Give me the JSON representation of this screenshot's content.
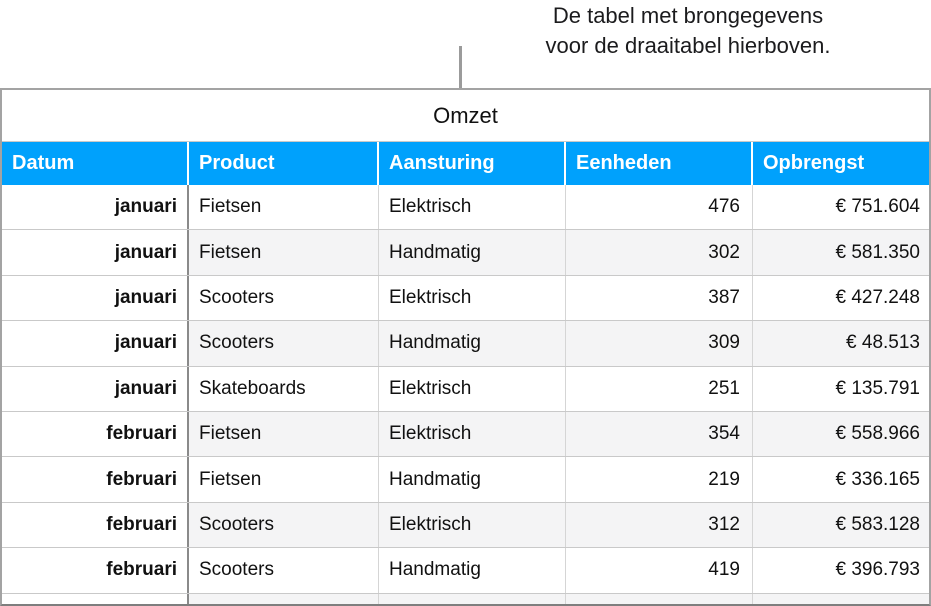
{
  "callout": {
    "line1": "De tabel met brongegevens",
    "line2": "voor de draaitabel hierboven."
  },
  "table": {
    "title": "Omzet",
    "columns": [
      "Datum",
      "Product",
      "Aansturing",
      "Eenheden",
      "Opbrengst"
    ],
    "rows": [
      [
        "januari",
        "Fietsen",
        "Elektrisch",
        "476",
        "€ 751.604"
      ],
      [
        "januari",
        "Fietsen",
        "Handmatig",
        "302",
        "€ 581.350"
      ],
      [
        "januari",
        "Scooters",
        "Elektrisch",
        "387",
        "€ 427.248"
      ],
      [
        "januari",
        "Scooters",
        "Handmatig",
        "309",
        "€ 48.513"
      ],
      [
        "januari",
        "Skateboards",
        "Elektrisch",
        "251",
        "€ 135.791"
      ],
      [
        "februari",
        "Fietsen",
        "Elektrisch",
        "354",
        "€ 558.966"
      ],
      [
        "februari",
        "Fietsen",
        "Handmatig",
        "219",
        "€ 336.165"
      ],
      [
        "februari",
        "Scooters",
        "Elektrisch",
        "312",
        "€ 583.128"
      ],
      [
        "februari",
        "Scooters",
        "Handmatig",
        "419",
        "€ 396.793"
      ]
    ]
  },
  "colors": {
    "header_bg": "#00a1fc",
    "header_text": "#ffffff",
    "alt_row_bg": "#f4f4f5",
    "grid_line": "#c9c9c9",
    "header_column_divider": "#8a8a8a",
    "outer_border": "#a3a3a3",
    "leader_line": "#9b9b9b"
  }
}
